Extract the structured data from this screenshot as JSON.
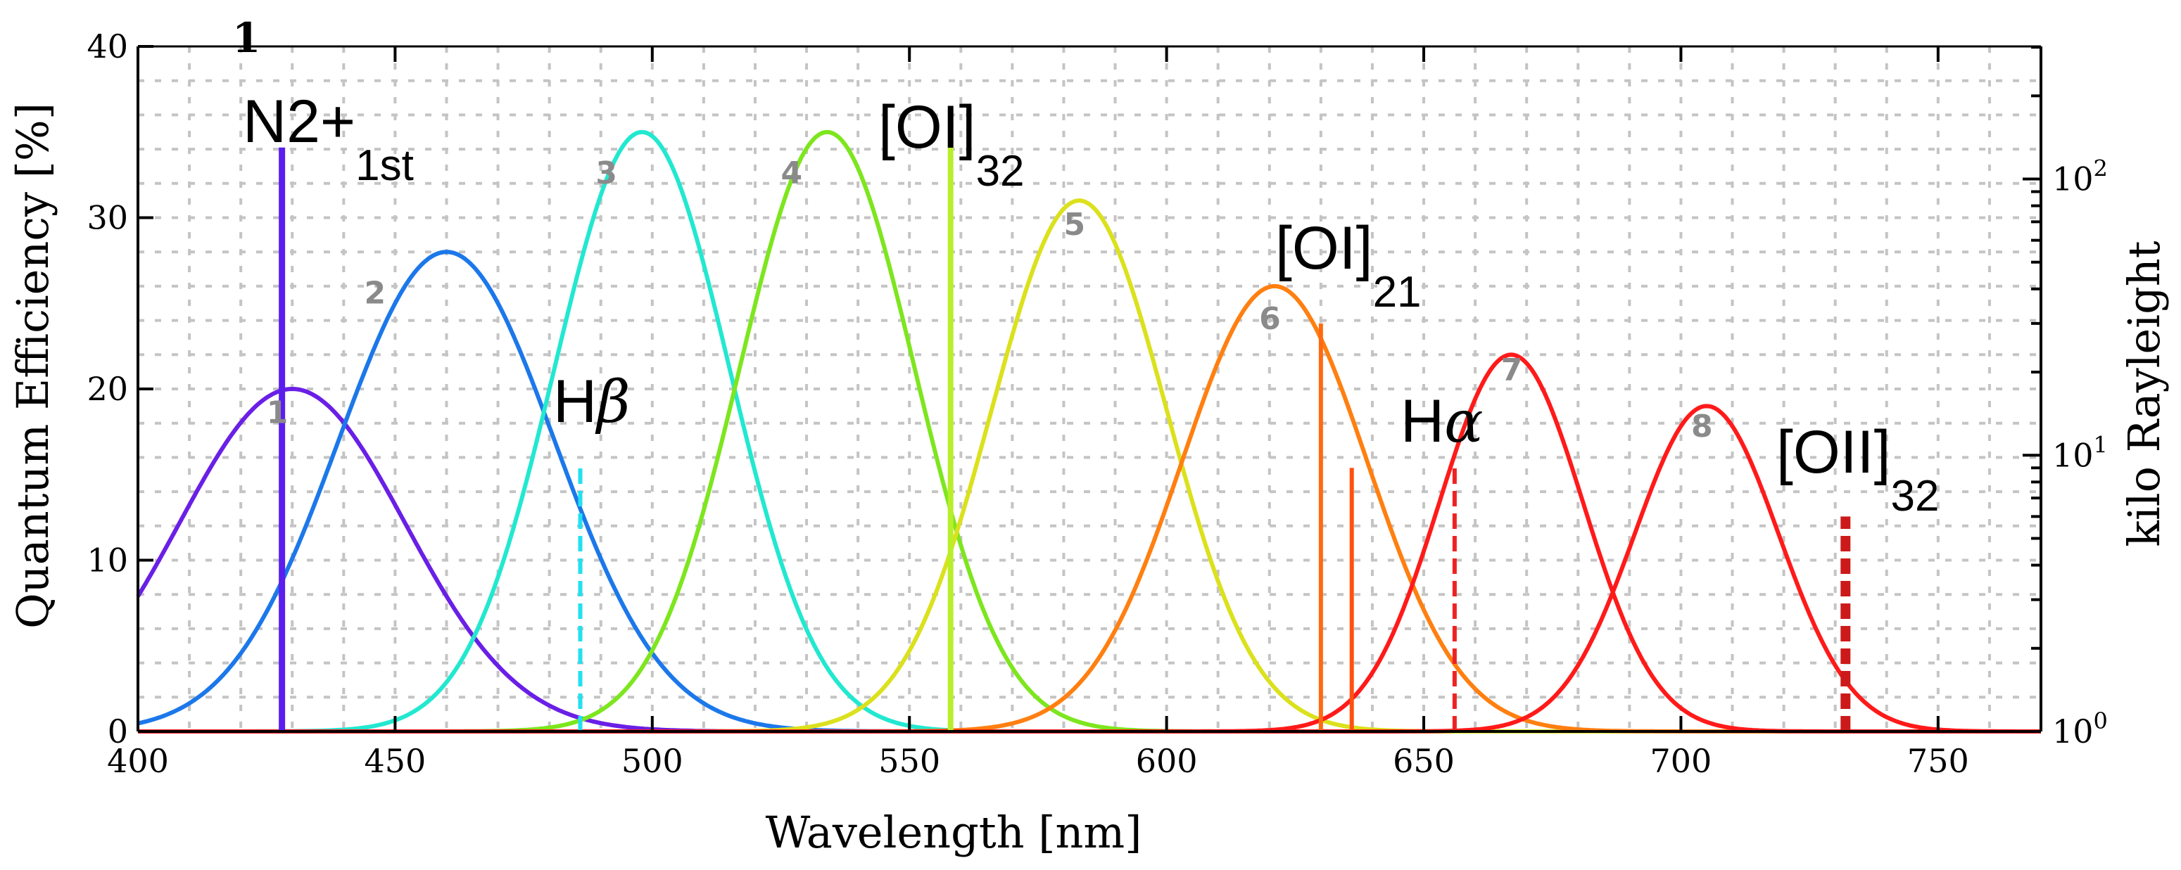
{
  "chart_data": {
    "type": "line",
    "panel_label": "1",
    "xlabel": "Wavelength [nm]",
    "ylabel": "Quantum Efficiency [%]",
    "y2label": "kilo Rayleight",
    "xlim": [
      400,
      770
    ],
    "ylim": [
      0,
      40
    ],
    "y2lim_log10": [
      0,
      2.48
    ],
    "x_ticks": [
      400,
      450,
      500,
      550,
      600,
      650,
      700,
      750
    ],
    "y_ticks": [
      0,
      10,
      20,
      30,
      40
    ],
    "y2_ticks": [
      {
        "base": "10",
        "exp": "0",
        "value": 1
      },
      {
        "base": "10",
        "exp": "1",
        "value": 10
      },
      {
        "base": "10",
        "exp": "2",
        "value": 100
      }
    ],
    "grid": true,
    "filters": [
      {
        "name": "1",
        "center": 430,
        "peak": 20,
        "sigma": 22,
        "color": "#6a1fe6"
      },
      {
        "name": "2",
        "center": 460,
        "peak": 28,
        "sigma": 21,
        "color": "#1c78ea"
      },
      {
        "name": "3",
        "center": 498,
        "peak": 35,
        "sigma": 17,
        "color": "#22e8d0"
      },
      {
        "name": "4",
        "center": 534,
        "peak": 35,
        "sigma": 17,
        "color": "#7de61e"
      },
      {
        "name": "5",
        "center": 583,
        "peak": 31,
        "sigma": 17,
        "color": "#dbe11c"
      },
      {
        "name": "6",
        "center": 621,
        "peak": 26,
        "sigma": 18,
        "color": "#ff7f10"
      },
      {
        "name": "7",
        "center": 667,
        "peak": 22,
        "sigma": 14,
        "color": "#ff1a1a"
      },
      {
        "name": "8",
        "center": 705,
        "peak": 19,
        "sigma": 14,
        "color": "#ff1a1a"
      }
    ],
    "emission_lines": [
      {
        "wavelength": 428,
        "kR": 130,
        "color": "#5a1fee",
        "dashed": false,
        "width": 9,
        "label_main": "N2+",
        "label_sub": "1st",
        "italic": false
      },
      {
        "wavelength": 486,
        "kR": 9,
        "color": "#22e0f0",
        "dashed": true,
        "width": 6,
        "label_main": "H",
        "label_sub": "β",
        "italic": true
      },
      {
        "wavelength": 558,
        "kR": 130,
        "color": "#b8ee2a",
        "dashed": false,
        "width": 8,
        "label_main": "[OI]",
        "label_sub": "32",
        "italic": false
      },
      {
        "wavelength": 630,
        "kR": 30,
        "color": "#ff6a10",
        "dashed": false,
        "width": 6,
        "label_main": "[OI]",
        "label_sub": "21",
        "italic": false
      },
      {
        "wavelength": 636,
        "kR": 9,
        "color": "#ff5010",
        "dashed": false,
        "width": 6,
        "label_main": "",
        "label_sub": "",
        "italic": false
      },
      {
        "wavelength": 656,
        "kR": 9,
        "color": "#ee2222",
        "dashed": true,
        "width": 6,
        "label_main": "H",
        "label_sub": "α",
        "italic": true
      },
      {
        "wavelength": 732,
        "kR": 6,
        "color": "#cc1a1a",
        "dashed": true,
        "width": 14,
        "label_main": "[OII]",
        "label_sub": "32",
        "italic": false
      }
    ]
  }
}
